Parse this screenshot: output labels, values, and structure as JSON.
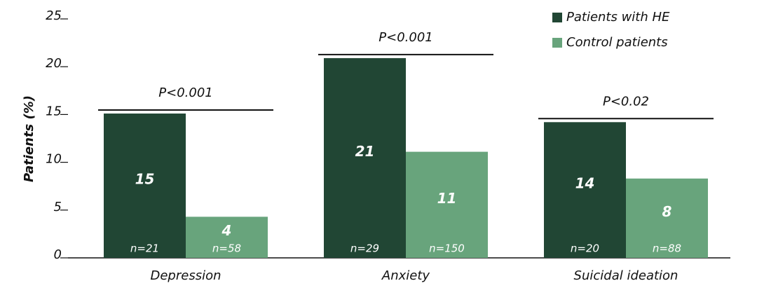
{
  "chart_data": {
    "type": "bar",
    "y_label": "Patients (%)",
    "categories": [
      "Depression",
      "Anxiety",
      "Suicidal ideation"
    ],
    "series": [
      {
        "name": "Patients with HE",
        "color": "#214634",
        "values": [
          15.1,
          20.9,
          14.2
        ],
        "value_labels": [
          "15",
          "21",
          "14"
        ],
        "sample_labels": [
          "n=21",
          "n=29",
          "n=20"
        ]
      },
      {
        "name": "Control patients",
        "color": "#68a47c",
        "values": [
          4.3,
          11.1,
          8.3
        ],
        "value_labels": [
          "4",
          "11",
          "8"
        ],
        "sample_labels": [
          "n=58",
          "n=150",
          "n=88"
        ]
      }
    ],
    "significance": [
      "P<0.001",
      "P<0.001",
      "P<0.02"
    ],
    "ylim": [
      0,
      25
    ],
    "yticks": [
      0,
      5,
      10,
      15,
      20,
      25
    ],
    "legend": "top-right"
  }
}
